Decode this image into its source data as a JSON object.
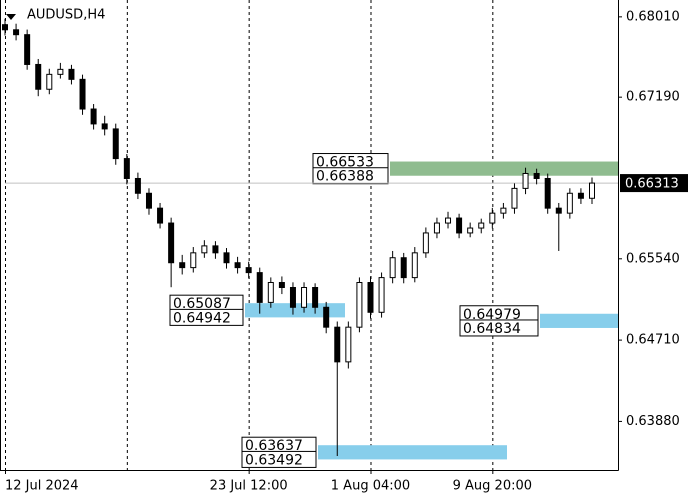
{
  "chart_data": {
    "type": "candlestick",
    "symbol": "AUDUSD,H4",
    "categories": [
      "12 Jul 2024",
      null,
      null,
      null,
      null,
      null,
      null,
      null,
      null,
      null,
      null,
      null,
      null,
      null,
      null,
      null,
      null,
      null,
      null,
      null,
      null,
      null,
      "23 Jul 12:00",
      null,
      null,
      null,
      null,
      null,
      null,
      null,
      null,
      null,
      null,
      "1 Aug 04:00",
      null,
      null,
      null,
      null,
      null,
      null,
      null,
      null,
      null,
      null,
      "9 Aug 20:00",
      null,
      null,
      null,
      null,
      null,
      null,
      null,
      null,
      null
    ],
    "open": [
      0.6793,
      0.67878,
      0.67828,
      0.67524,
      0.67271,
      0.67423,
      0.67474,
      0.67372,
      0.67069,
      0.66917,
      0.66866,
      0.66563,
      0.6636,
      0.66209,
      0.66057,
      0.65905,
      0.655,
      0.6545,
      0.65601,
      0.65672,
      0.65601,
      0.655,
      0.6545,
      0.65399,
      0.65095,
      0.65298,
      0.65247,
      0.65045,
      0.65247,
      0.65045,
      0.64842,
      0.64488,
      0.64842,
      0.65298,
      0.64994,
      0.65348,
      0.65551,
      0.65348,
      0.65601,
      0.65804,
      0.65905,
      0.65956,
      0.65804,
      0.65854,
      0.65905,
      0.66006,
      0.66057,
      0.66259,
      0.66411,
      0.6636,
      0.66057,
      0.66006,
      0.66209,
      0.66158
    ],
    "high": [
      0.6799,
      0.6794,
      0.6788,
      0.6758,
      0.6748,
      0.6754,
      0.6752,
      0.6742,
      0.6712,
      0.67,
      0.6692,
      0.6661,
      0.6642,
      0.6626,
      0.6611,
      0.6596,
      0.6558,
      0.6566,
      0.6573,
      0.6572,
      0.6565,
      0.6556,
      0.6551,
      0.6545,
      0.6535,
      0.6536,
      0.653,
      0.653,
      0.6529,
      0.651,
      0.649,
      0.649,
      0.6535,
      0.6536,
      0.654,
      0.6562,
      0.656,
      0.6566,
      0.6586,
      0.6596,
      0.6602,
      0.66,
      0.6591,
      0.6595,
      0.6606,
      0.6611,
      0.6631,
      0.6647,
      0.6646,
      0.6641,
      0.6611,
      0.6626,
      0.6626,
      0.6637
    ],
    "low": [
      0.6782,
      0.6777,
      0.6747,
      0.672,
      0.6722,
      0.6738,
      0.6732,
      0.6701,
      0.6686,
      0.668,
      0.665,
      0.663,
      0.6615,
      0.6599,
      0.6585,
      0.6525,
      0.6538,
      0.654,
      0.6555,
      0.6554,
      0.6544,
      0.6539,
      0.6534,
      0.6498,
      0.6504,
      0.6518,
      0.6497,
      0.6499,
      0.6498,
      0.6478,
      0.63527,
      0.6442,
      0.6479,
      0.6493,
      0.6494,
      0.6529,
      0.6529,
      0.653,
      0.6555,
      0.6575,
      0.6585,
      0.6575,
      0.6576,
      0.658,
      0.6585,
      0.6595,
      0.66,
      0.662,
      0.663,
      0.66,
      0.6562,
      0.6595,
      0.661,
      0.661
    ],
    "close": [
      0.67878,
      0.67828,
      0.67524,
      0.67271,
      0.67423,
      0.67474,
      0.67372,
      0.67069,
      0.66917,
      0.66866,
      0.66563,
      0.6636,
      0.66209,
      0.66057,
      0.65905,
      0.655,
      0.6545,
      0.65601,
      0.65672,
      0.65601,
      0.655,
      0.6545,
      0.65399,
      0.65095,
      0.65298,
      0.65247,
      0.65045,
      0.65247,
      0.65045,
      0.64842,
      0.64488,
      0.64842,
      0.65298,
      0.64994,
      0.65348,
      0.65551,
      0.65348,
      0.65601,
      0.65804,
      0.65905,
      0.65956,
      0.65804,
      0.65854,
      0.65905,
      0.66006,
      0.66057,
      0.66259,
      0.66411,
      0.6636,
      0.66057,
      0.66006,
      0.66209,
      0.66158,
      0.66313
    ],
    "last_price": 0.66313,
    "zones": [
      {
        "color": "#8fbc8f",
        "top": 0.66533,
        "bottom": 0.66388
      },
      {
        "color": "#87ceeb",
        "top": 0.65087,
        "bottom": 0.64942
      },
      {
        "color": "#87ceeb",
        "top": 0.64979,
        "bottom": 0.64834
      },
      {
        "color": "#87ceeb",
        "top": 0.63637,
        "bottom": 0.63492
      }
    ],
    "ylim": [
      0.63384,
      0.68182
    ],
    "yticks": [
      {
        "value": 0.6801,
        "label": "0.68010"
      },
      {
        "value": 0.6719,
        "label": "0.67190"
      },
      {
        "value": 0.6554,
        "label": "0.65540"
      },
      {
        "value": 0.6471,
        "label": "0.64710"
      },
      {
        "value": 0.6388,
        "label": "0.63880"
      }
    ],
    "grid": true
  }
}
